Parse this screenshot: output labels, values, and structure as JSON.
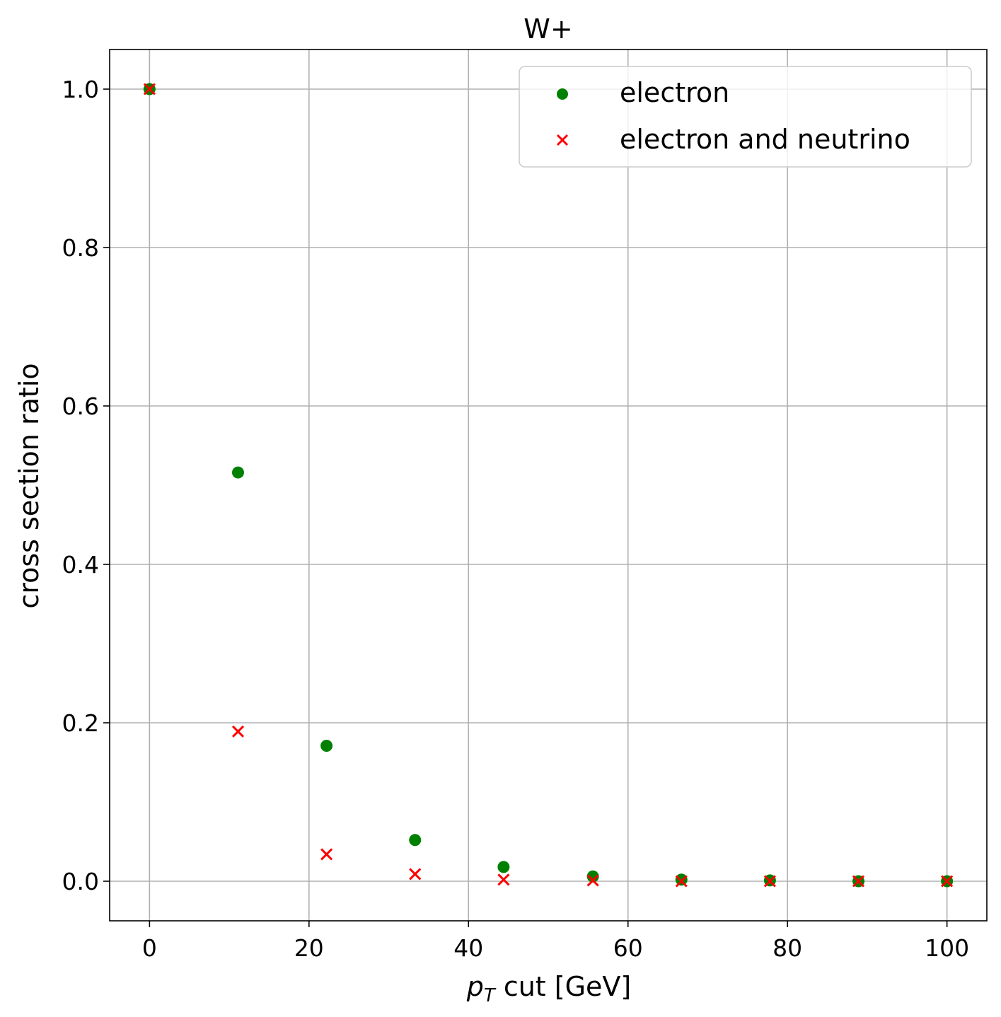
{
  "chart_data": {
    "type": "scatter",
    "title": "W+",
    "xlabel_italic": "p",
    "xlabel_sub": "T",
    "xlabel_rest": " cut [GeV]",
    "ylabel": "cross section ratio",
    "xlim": [
      -5,
      105
    ],
    "ylim": [
      -0.05,
      1.05
    ],
    "xticks": [
      0,
      20,
      40,
      60,
      80,
      100
    ],
    "yticks": [
      0.0,
      0.2,
      0.4,
      0.6,
      0.8,
      1.0
    ],
    "xtick_labels": [
      "0",
      "20",
      "40",
      "60",
      "80",
      "100"
    ],
    "ytick_labels": [
      "0.0",
      "0.2",
      "0.4",
      "0.6",
      "0.8",
      "1.0"
    ],
    "grid": true,
    "legend_position": "top-right",
    "series": [
      {
        "name": "electron",
        "marker": "circle",
        "color": "#008000",
        "x": [
          0,
          11.1,
          22.2,
          33.3,
          44.4,
          55.6,
          66.7,
          77.8,
          88.9,
          100
        ],
        "y": [
          1.0,
          0.516,
          0.171,
          0.052,
          0.018,
          0.006,
          0.002,
          0.001,
          0.0,
          0.0
        ]
      },
      {
        "name": "electron and neutrino",
        "marker": "x",
        "color": "#ff0000",
        "x": [
          0,
          11.1,
          22.2,
          33.3,
          44.4,
          55.6,
          66.7,
          77.8,
          88.9,
          100
        ],
        "y": [
          1.0,
          0.189,
          0.034,
          0.009,
          0.002,
          0.001,
          0.0,
          0.0,
          0.0,
          0.0
        ]
      }
    ]
  }
}
